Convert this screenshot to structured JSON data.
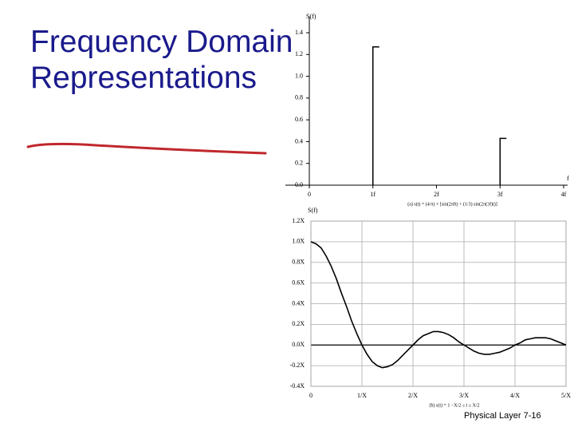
{
  "header": {
    "title": "Frequency Domain Representations"
  },
  "footer": {
    "text": "Physical Layer  7-16"
  },
  "chart_data": [
    {
      "type": "stem",
      "y_label": "S(f)",
      "x_label": "f",
      "caption": "(a) s(t) = (4/π) × [sin(2πft) + (1/3) sin(2π(3f)t)]",
      "x": [
        1,
        3
      ],
      "values": [
        1.27,
        0.43
      ],
      "color": "#000000",
      "xlim": [
        0,
        4
      ],
      "ylim": [
        0,
        1.4
      ],
      "xticks": [
        0,
        {
          "value": 1,
          "label": "1f"
        },
        {
          "value": 2,
          "label": "2f"
        },
        {
          "value": 3,
          "label": "3f"
        },
        {
          "value": 4,
          "label": "4f"
        }
      ],
      "yticks": [
        {
          "value": 0,
          "label": "0.0"
        },
        0.2,
        0.4,
        0.6,
        0.8,
        {
          "value": 1,
          "label": "1.0"
        },
        1.2,
        1.4
      ],
      "grid": false
    },
    {
      "type": "line",
      "y_label": "S(f)",
      "caption": "(b) s(t) = 1    −X/2 ≤ t ≤ X/2",
      "x": [
        0,
        0.1,
        0.2,
        0.3,
        0.4,
        0.5,
        0.6,
        0.7,
        0.8,
        0.9,
        1,
        1.1,
        1.2,
        1.3,
        1.4,
        1.5,
        1.6,
        1.7,
        1.8,
        1.9,
        2,
        2.1,
        2.2,
        2.3,
        2.4,
        2.5,
        2.6,
        2.7,
        2.8,
        2.9,
        3,
        3.1,
        3.2,
        3.3,
        3.4,
        3.5,
        3.6,
        3.7,
        3.8,
        3.9,
        4,
        4.1,
        4.2,
        4.3,
        4.4,
        4.5,
        4.6,
        4.7,
        4.8,
        4.9,
        5
      ],
      "values": [
        1,
        0.98,
        0.94,
        0.86,
        0.76,
        0.64,
        0.5,
        0.37,
        0.23,
        0.11,
        0,
        -0.09,
        -0.16,
        -0.2,
        -0.22,
        -0.21,
        -0.19,
        -0.15,
        -0.1,
        -0.05,
        0,
        0.05,
        0.09,
        0.11,
        0.13,
        0.13,
        0.12,
        0.1,
        0.07,
        0.03,
        0,
        -0.03,
        -0.06,
        -0.08,
        -0.09,
        -0.09,
        -0.08,
        -0.07,
        -0.05,
        -0.03,
        0,
        0.02,
        0.05,
        0.06,
        0.07,
        0.07,
        0.07,
        0.06,
        0.04,
        0.02,
        0
      ],
      "color": "#000000",
      "xlim": [
        0,
        5
      ],
      "ylim": [
        -0.4,
        1.2
      ],
      "xticks": [
        0,
        {
          "value": 1,
          "label": "1/X"
        },
        {
          "value": 2,
          "label": "2/X"
        },
        {
          "value": 3,
          "label": "3/X"
        },
        {
          "value": 4,
          "label": "4/X"
        },
        {
          "value": 5,
          "label": "5/X"
        }
      ],
      "yticks": [
        {
          "value": -0.4,
          "label": "-0.4X"
        },
        {
          "value": -0.2,
          "label": "-0.2X"
        },
        {
          "value": 0,
          "label": "0.0X"
        },
        {
          "value": 0.2,
          "label": "0.2X"
        },
        {
          "value": 0.4,
          "label": "0.4X"
        },
        {
          "value": 0.6,
          "label": "0.6X"
        },
        {
          "value": 0.8,
          "label": "0.8X"
        },
        {
          "value": 1,
          "label": "1.0X"
        },
        {
          "value": 1.2,
          "label": "1.2X"
        }
      ],
      "grid": true
    }
  ]
}
